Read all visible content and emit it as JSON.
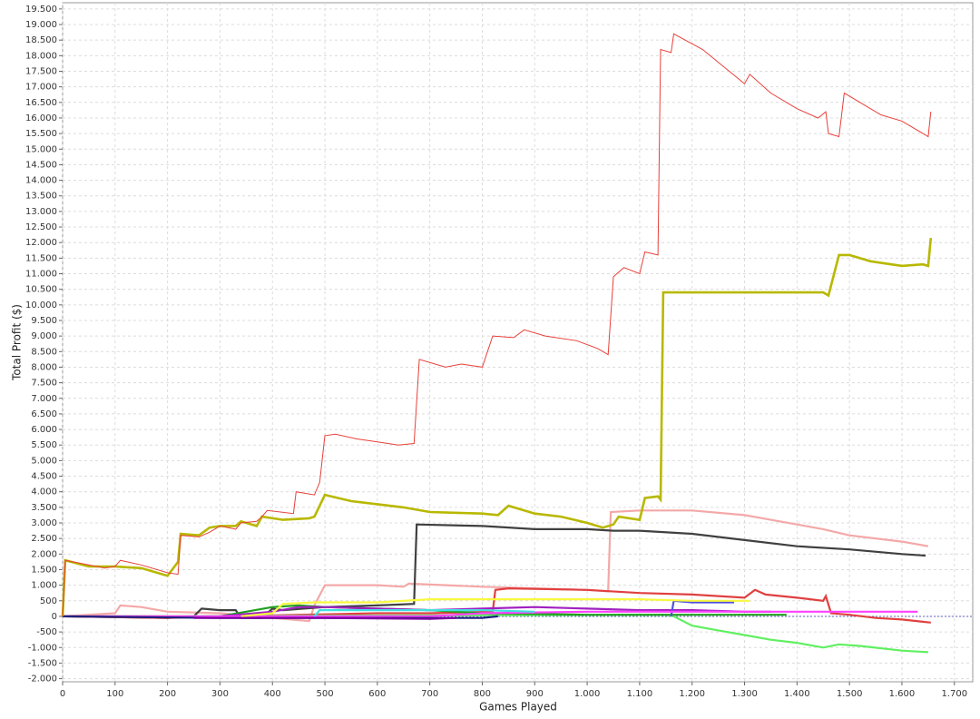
{
  "chart_data": {
    "type": "line",
    "x_label": "Games Played",
    "y_label": "Total Profit ($)",
    "xlim": [
      0,
      1735
    ],
    "ylim": [
      -2100,
      19700
    ],
    "grid": true,
    "xticks": [
      0,
      100,
      200,
      300,
      400,
      500,
      600,
      700,
      800,
      900,
      {
        "value": 1000,
        "label": "1.000"
      },
      {
        "value": 1100,
        "label": "1.100"
      },
      {
        "value": 1200,
        "label": "1.200"
      },
      {
        "value": 1300,
        "label": "1.300"
      },
      {
        "value": 1400,
        "label": "1.400"
      },
      {
        "value": 1500,
        "label": "1.500"
      },
      {
        "value": 1600,
        "label": "1.600"
      },
      {
        "value": 1700,
        "label": "1.700"
      }
    ],
    "yticks": [
      {
        "value": -2000,
        "label": "-2.000"
      },
      {
        "value": -1500,
        "label": "-1.500"
      },
      {
        "value": -1000,
        "label": "-1.000"
      },
      -500,
      0,
      500,
      {
        "value": 1000,
        "label": "1.000"
      },
      {
        "value": 1500,
        "label": "1.500"
      },
      {
        "value": 2000,
        "label": "2.000"
      },
      {
        "value": 2500,
        "label": "2.500"
      },
      {
        "value": 3000,
        "label": "3.000"
      },
      {
        "value": 3500,
        "label": "3.500"
      },
      {
        "value": 4000,
        "label": "4.000"
      },
      {
        "value": 4500,
        "label": "4.500"
      },
      {
        "value": 5000,
        "label": "5.000"
      },
      {
        "value": 5500,
        "label": "5.500"
      },
      {
        "value": 6000,
        "label": "6.000"
      },
      {
        "value": 6500,
        "label": "6.500"
      },
      {
        "value": 7000,
        "label": "7.000"
      },
      {
        "value": 7500,
        "label": "7.500"
      },
      {
        "value": 8000,
        "label": "8.000"
      },
      {
        "value": 8500,
        "label": "8.500"
      },
      {
        "value": 9000,
        "label": "9.000"
      },
      {
        "value": 9500,
        "label": "9.500"
      },
      {
        "value": 10000,
        "label": "10.000"
      },
      {
        "value": 10500,
        "label": "10.500"
      },
      {
        "value": 11000,
        "label": "11.000"
      },
      {
        "value": 11500,
        "label": "11.500"
      },
      {
        "value": 12000,
        "label": "12.000"
      },
      {
        "value": 12500,
        "label": "12.500"
      },
      {
        "value": 13000,
        "label": "13.000"
      },
      {
        "value": 13500,
        "label": "13.500"
      },
      {
        "value": 14000,
        "label": "14.000"
      },
      {
        "value": 14500,
        "label": "14.500"
      },
      {
        "value": 15000,
        "label": "15.000"
      },
      {
        "value": 15500,
        "label": "15.500"
      },
      {
        "value": 16000,
        "label": "16.000"
      },
      {
        "value": 16500,
        "label": "16.500"
      },
      {
        "value": 17000,
        "label": "17.000"
      },
      {
        "value": 17500,
        "label": "17.500"
      },
      {
        "value": 18000,
        "label": "18.000"
      },
      {
        "value": 18500,
        "label": "18.500"
      },
      {
        "value": 19000,
        "label": "19.000"
      },
      {
        "value": 19500,
        "label": "19.500"
      }
    ],
    "series": [
      {
        "color": "#f4a8a8",
        "line_width": 2.2,
        "x": [
          0,
          100,
          110,
          150,
          200,
          300,
          400,
          470,
          480,
          500,
          600,
          650,
          660,
          800,
          1000,
          1040,
          1045,
          1100,
          1200,
          1300,
          1350,
          1400,
          1450,
          1500,
          1600,
          1650
        ],
        "values": [
          0,
          100,
          350,
          300,
          150,
          100,
          -50,
          -150,
          350,
          1000,
          1000,
          950,
          1050,
          950,
          850,
          800,
          3350,
          3400,
          3400,
          3250,
          3100,
          2950,
          2800,
          2600,
          2400,
          2250
        ]
      },
      {
        "color": "#404040",
        "line_width": 2.2,
        "x": [
          0,
          200,
          250,
          265,
          300,
          330,
          340,
          380,
          400,
          420,
          500,
          600,
          670,
          675,
          800,
          900,
          1000,
          1050,
          1100,
          1200,
          1300,
          1400,
          1500,
          1600,
          1645
        ],
        "values": [
          0,
          -50,
          0,
          250,
          200,
          200,
          -50,
          -50,
          250,
          200,
          300,
          350,
          400,
          2950,
          2900,
          2800,
          2800,
          2750,
          2750,
          2650,
          2450,
          2250,
          2150,
          2000,
          1950
        ]
      },
      {
        "color": "#e04040",
        "line_width": 2.2,
        "x": [
          0,
          200,
          300,
          600,
          700,
          820,
          825,
          850,
          1000,
          1100,
          1200,
          1300,
          1320,
          1340,
          1400,
          1450,
          1455,
          1465,
          1500,
          1550,
          1600,
          1655
        ],
        "values": [
          0,
          -50,
          0,
          100,
          100,
          150,
          850,
          900,
          850,
          750,
          700,
          600,
          850,
          700,
          600,
          500,
          650,
          100,
          50,
          -50,
          -100,
          -200
        ]
      },
      {
        "color": "#60f060",
        "line_width": 2.2,
        "x": [
          0,
          1150,
          1165,
          1200,
          1250,
          1300,
          1350,
          1400,
          1450,
          1480,
          1520,
          1600,
          1650
        ],
        "values": [
          0,
          50,
          0,
          -300,
          -450,
          -600,
          -750,
          -850,
          -1000,
          -900,
          -950,
          -1100,
          -1150
        ]
      },
      {
        "color": "#20a020",
        "line_width": 2.2,
        "x": [
          300,
          350,
          400,
          450,
          500,
          600,
          700,
          800,
          1000,
          1200,
          1380
        ],
        "values": [
          0,
          150,
          300,
          350,
          300,
          250,
          200,
          100,
          50,
          50,
          50
        ]
      },
      {
        "color": "#a020c0",
        "line_width": 2.2,
        "x": [
          300,
          400,
          450,
          500,
          600,
          700,
          800,
          900,
          1000,
          1100,
          1200,
          1300,
          1350
        ],
        "values": [
          0,
          150,
          300,
          300,
          250,
          200,
          250,
          300,
          250,
          200,
          200,
          150,
          150
        ]
      },
      {
        "color": "#5050e0",
        "line_width": 2.2,
        "x": [
          1160,
          1165,
          1200,
          1280
        ],
        "values": [
          0,
          500,
          450,
          450
        ]
      },
      {
        "color": "#ff40ff",
        "line_width": 2.2,
        "x": [
          0,
          700,
          800,
          1000,
          1200,
          1400,
          1630
        ],
        "values": [
          0,
          0,
          100,
          150,
          150,
          150,
          150
        ]
      },
      {
        "color": "#f8f840",
        "line_width": 2.2,
        "x": [
          340,
          400,
          420,
          480,
          600,
          700,
          900,
          1100,
          1200,
          1310
        ],
        "values": [
          0,
          100,
          400,
          450,
          450,
          550,
          550,
          550,
          500,
          500
        ]
      },
      {
        "color": "#202080",
        "line_width": 2.2,
        "x": [
          0,
          300,
          500,
          700,
          800,
          830
        ],
        "values": [
          0,
          -50,
          -50,
          -50,
          -50,
          0
        ]
      },
      {
        "color": "#40e0e0",
        "line_width": 2.2,
        "x": [
          480,
          490,
          600,
          800,
          900
        ],
        "values": [
          0,
          200,
          200,
          200,
          150
        ]
      },
      {
        "color": "#8000a0",
        "line_width": 2.2,
        "x": [
          250,
          500,
          700,
          750
        ],
        "values": [
          -50,
          -50,
          -80,
          -50
        ]
      },
      {
        "color": "#b8b800",
        "line_width": 2.6,
        "x": [
          0,
          5,
          50,
          100,
          150,
          200,
          220,
          225,
          260,
          280,
          300,
          330,
          340,
          370,
          380,
          420,
          470,
          480,
          490,
          500,
          550,
          600,
          650,
          700,
          800,
          830,
          850,
          900,
          950,
          1000,
          1030,
          1050,
          1060,
          1100,
          1110,
          1135,
          1140,
          1145,
          1200,
          1300,
          1450,
          1460,
          1480,
          1500,
          1540,
          1600,
          1640,
          1650,
          1655
        ],
        "values": [
          0,
          1800,
          1600,
          1600,
          1550,
          1300,
          1750,
          2650,
          2600,
          2850,
          2900,
          2900,
          3050,
          2900,
          3200,
          3100,
          3150,
          3200,
          3550,
          3900,
          3700,
          3600,
          3500,
          3350,
          3300,
          3250,
          3550,
          3300,
          3200,
          3000,
          2850,
          2950,
          3200,
          3100,
          3800,
          3850,
          3750,
          10400,
          10400,
          10400,
          10400,
          10300,
          11600,
          11600,
          11400,
          11250,
          11300,
          11250,
          12150
        ]
      },
      {
        "color": "#e8403a",
        "line_width": 1,
        "x": [
          0,
          5,
          50,
          80,
          100,
          110,
          150,
          200,
          220,
          225,
          260,
          280,
          300,
          330,
          340,
          370,
          380,
          390,
          440,
          445,
          480,
          490,
          500,
          520,
          560,
          600,
          640,
          670,
          680,
          730,
          760,
          800,
          820,
          860,
          880,
          920,
          980,
          1020,
          1040,
          1050,
          1070,
          1100,
          1110,
          1135,
          1140,
          1160,
          1165,
          1220,
          1300,
          1310,
          1350,
          1400,
          1440,
          1455,
          1460,
          1480,
          1490,
          1520,
          1560,
          1600,
          1650,
          1655
        ],
        "values": [
          0,
          1800,
          1650,
          1550,
          1600,
          1800,
          1650,
          1400,
          1350,
          2600,
          2550,
          2700,
          2900,
          2800,
          3000,
          3050,
          3200,
          3400,
          3300,
          4000,
          3900,
          4300,
          5800,
          5850,
          5700,
          5600,
          5500,
          5550,
          8250,
          8000,
          8100,
          8000,
          9000,
          8950,
          9200,
          9000,
          8850,
          8600,
          8400,
          10900,
          11200,
          11000,
          11700,
          11600,
          18200,
          18100,
          18700,
          18200,
          17100,
          17400,
          16800,
          16300,
          16000,
          16200,
          15500,
          15400,
          16800,
          16500,
          16100,
          15900,
          15400,
          16200
        ]
      }
    ]
  }
}
